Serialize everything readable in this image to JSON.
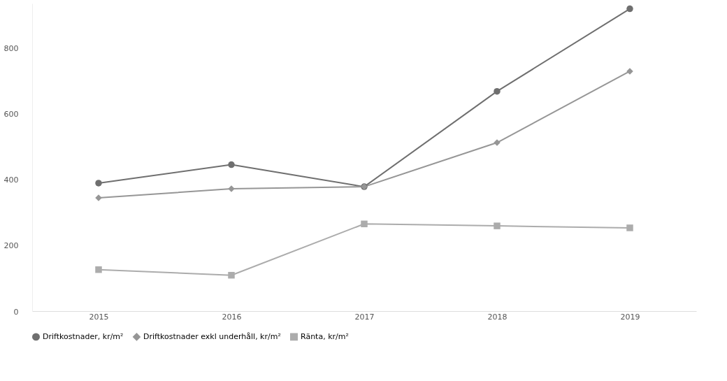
{
  "chart_data": {
    "type": "line",
    "categories": [
      "2015",
      "2016",
      "2017",
      "2018",
      "2019"
    ],
    "series": [
      {
        "name": "Driftkostnader, kr/m²",
        "color": "#6f6f6f",
        "marker": "circle",
        "values": [
          389,
          445,
          378,
          668,
          919
        ]
      },
      {
        "name": "Driftkostnader exkl underhåll, kr/m²",
        "color": "#969696",
        "marker": "diamond",
        "values": [
          344,
          372,
          378,
          512,
          729
        ]
      },
      {
        "name": "Ränta, kr/m²",
        "color": "#acacac",
        "marker": "square",
        "values": [
          126,
          109,
          265,
          259,
          253
        ]
      }
    ],
    "yticks": [
      0,
      200,
      400,
      600,
      800
    ],
    "ylim": [
      0,
      935
    ],
    "grid": false,
    "legend": "bottom",
    "line_style": "solid"
  }
}
